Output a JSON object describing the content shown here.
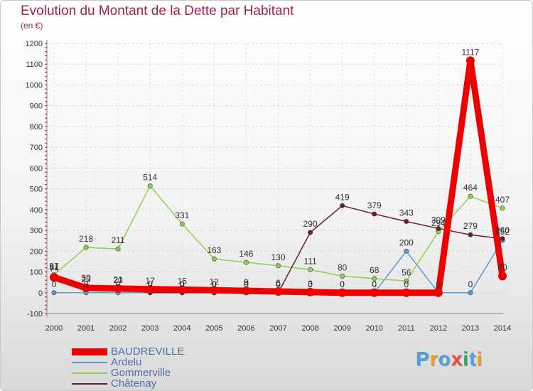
{
  "chart_data": {
    "type": "line",
    "title": "Evolution du Montant de la Dette par Habitant",
    "subtitle": "(en €)",
    "xlabel": "",
    "ylabel": "",
    "ylim": [
      -100,
      1200
    ],
    "yticks": [
      -100,
      0,
      100,
      200,
      300,
      400,
      500,
      600,
      700,
      800,
      900,
      1000,
      1100,
      1200
    ],
    "grid": true,
    "legend_position": "bottom-left",
    "categories": [
      "2000",
      "2001",
      "2002",
      "2003",
      "2004",
      "2005",
      "2006",
      "2007",
      "2008",
      "2009",
      "2010",
      "2011",
      "2012",
      "2013",
      "2014"
    ],
    "series": [
      {
        "name": "BAUDREVILLE",
        "color": "#ee0000",
        "values": [
          74,
          23,
          20,
          17,
          15,
          12,
          9,
          6,
          3,
          0,
          0,
          0,
          0,
          1117,
          80
        ]
      },
      {
        "name": "Ardelu",
        "color": "#5a9bd0",
        "values": [
          0,
          0,
          0,
          0,
          0,
          0,
          0,
          0,
          0,
          0,
          0,
          200,
          0,
          0,
          252
        ]
      },
      {
        "name": "Gommerville",
        "color": "#8fd14f",
        "values": [
          87,
          218,
          211,
          514,
          331,
          163,
          146,
          130,
          111,
          80,
          68,
          56,
          294,
          464,
          407
        ]
      },
      {
        "name": "Châtenay",
        "color": "#6e1e2a",
        "values": [
          81,
          30,
          21,
          0,
          0,
          0,
          0,
          0,
          290,
          419,
          379,
          343,
          309,
          279,
          260
        ]
      }
    ],
    "labels": [
      {
        "name": "BAUDREVILLE",
        "values": [
          "74",
          "23",
          "20",
          "17",
          "15",
          "12",
          "9",
          "6",
          "3",
          "0",
          "0",
          "0",
          "0",
          "1117",
          "80"
        ]
      },
      {
        "name": "Ardelu",
        "values": [
          "0",
          "0",
          "0",
          "0",
          "0",
          "0",
          "0",
          "0",
          "0",
          "0",
          "0",
          "200",
          "0",
          "0",
          "252"
        ]
      },
      {
        "name": "Gommerville",
        "values": [
          "87",
          "218",
          "211",
          "514",
          "331",
          "163",
          "146",
          "130",
          "111",
          "80",
          "68",
          "56",
          "294",
          "464",
          "407"
        ]
      },
      {
        "name": "Châtenay",
        "values": [
          "81",
          "30",
          "21",
          "0",
          "0",
          "0",
          "0",
          "0",
          "290",
          "419",
          "379",
          "343",
          "309",
          "279",
          "260"
        ]
      }
    ]
  },
  "brand": {
    "letters": [
      "P",
      "r",
      "o",
      "x",
      "i",
      "t",
      "i"
    ],
    "colors": [
      "#4aa3df",
      "#f39c12",
      "#4aa3df",
      "#e74c3c",
      "#27ae60",
      "#4aa3df",
      "#f39c12"
    ]
  }
}
